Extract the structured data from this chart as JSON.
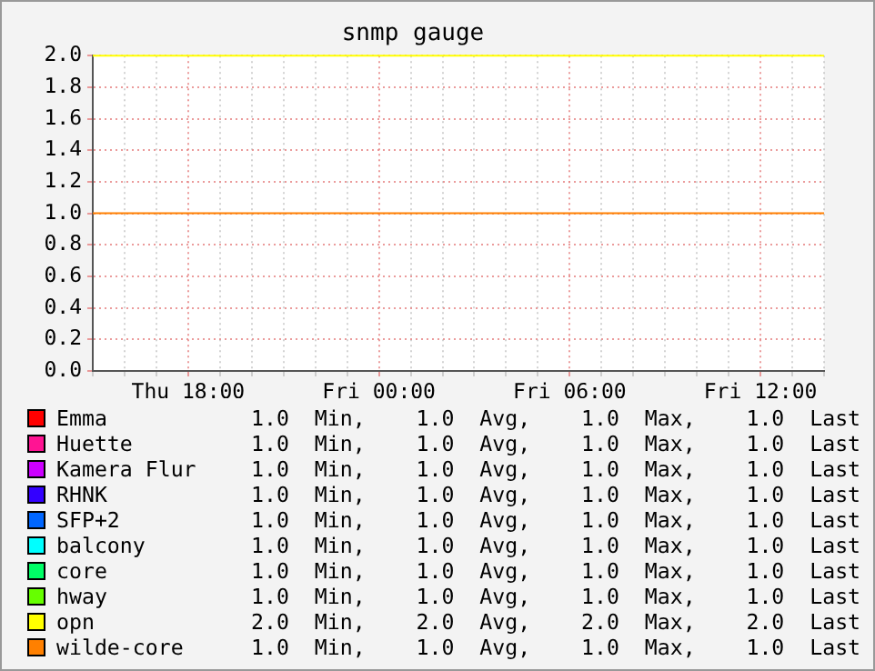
{
  "chart_data": {
    "type": "line",
    "title": "snmp gauge",
    "categories": [
      null,
      null,
      null,
      "Thu 18:00",
      null,
      null,
      null,
      null,
      null,
      "Fri 00:00",
      null,
      null,
      null,
      null,
      null,
      "Fri 06:00",
      null,
      null,
      null,
      null,
      null,
      "Fri 12:00",
      null,
      null
    ],
    "ylim": [
      0,
      2
    ],
    "yticks": [
      {
        "value": 0,
        "label": "0.0"
      },
      {
        "value": 0.2,
        "label": "0.2"
      },
      {
        "value": 0.4,
        "label": "0.4"
      },
      {
        "value": 0.6,
        "label": "0.6"
      },
      {
        "value": 0.8,
        "label": "0.8"
      },
      {
        "value": 1,
        "label": "1.0"
      },
      {
        "value": 1.2,
        "label": "1.2"
      },
      {
        "value": 1.4,
        "label": "1.4"
      },
      {
        "value": 1.6,
        "label": "1.6"
      },
      {
        "value": 1.8,
        "label": "1.8"
      },
      {
        "value": 2,
        "label": "2.0"
      }
    ],
    "grid": true,
    "legend": "bottom",
    "series": [
      {
        "name": "Emma",
        "color": "#ff0000",
        "values": [
          null,
          null,
          null,
          null,
          null,
          null,
          null,
          null,
          null,
          null,
          null,
          null,
          null,
          null,
          null,
          null,
          null,
          null,
          null,
          null,
          null,
          null,
          null,
          null
        ]
      },
      {
        "name": "Huette",
        "color": "#ff1493",
        "values": [
          null,
          null,
          null,
          null,
          null,
          null,
          null,
          null,
          null,
          null,
          null,
          null,
          null,
          null,
          null,
          null,
          null,
          null,
          null,
          null,
          null,
          null,
          null,
          null
        ]
      },
      {
        "name": "Kamera Flur",
        "color": "#cc00ff",
        "values": [
          null,
          null,
          null,
          null,
          null,
          null,
          null,
          null,
          null,
          null,
          null,
          null,
          null,
          null,
          null,
          null,
          null,
          null,
          null,
          null,
          null,
          null,
          null,
          null
        ]
      },
      {
        "name": "RHNK",
        "color": "#3300ff",
        "values": [
          null,
          null,
          null,
          null,
          null,
          null,
          null,
          null,
          null,
          null,
          null,
          null,
          null,
          null,
          null,
          null,
          null,
          null,
          null,
          null,
          null,
          null,
          null,
          null
        ]
      },
      {
        "name": "SFP+2",
        "color": "#0066ff",
        "values": [
          null,
          null,
          null,
          null,
          null,
          null,
          null,
          null,
          null,
          null,
          null,
          null,
          null,
          null,
          null,
          null,
          null,
          null,
          null,
          null,
          null,
          null,
          null,
          null
        ]
      },
      {
        "name": "balcony",
        "color": "#00ffff",
        "values": [
          null,
          null,
          null,
          null,
          null,
          null,
          null,
          null,
          null,
          null,
          null,
          null,
          null,
          null,
          null,
          null,
          null,
          null,
          null,
          null,
          null,
          null,
          null,
          null
        ]
      },
      {
        "name": "core",
        "color": "#00ff66",
        "values": [
          null,
          null,
          null,
          null,
          null,
          null,
          null,
          null,
          null,
          null,
          null,
          null,
          null,
          null,
          null,
          null,
          null,
          null,
          null,
          null,
          null,
          null,
          null,
          null
        ]
      },
      {
        "name": "hway",
        "color": "#66ff00",
        "values": [
          null,
          null,
          null,
          null,
          null,
          null,
          null,
          null,
          null,
          null,
          null,
          null,
          null,
          null,
          null,
          null,
          null,
          null,
          null,
          null,
          null,
          null,
          null,
          null
        ]
      },
      {
        "name": "opn",
        "color": "#ffff00",
        "values": [
          2,
          2,
          2,
          2,
          2,
          2,
          2,
          2,
          2,
          2,
          2,
          2,
          2,
          2,
          2,
          2,
          2,
          2,
          2,
          2,
          2,
          2,
          2,
          2
        ]
      },
      {
        "name": "wilde-core",
        "color": "#ff8000",
        "values": [
          1,
          1,
          1,
          1,
          1,
          1,
          1,
          1,
          1,
          1,
          1,
          1,
          1,
          1,
          1,
          1,
          1,
          1,
          1,
          1,
          1,
          1,
          1,
          1
        ]
      }
    ],
    "annotations": [
      "1.0  Min,    1.0  Avg,    1.0  Max,    1.0  Last",
      "1.0  Min,    1.0  Avg,    1.0  Max,    1.0  Last",
      "1.0  Min,    1.0  Avg,    1.0  Max,    1.0  Last",
      "1.0  Min,    1.0  Avg,    1.0  Max,    1.0  Last",
      "1.0  Min,    1.0  Avg,    1.0  Max,    1.0  Last",
      "1.0  Min,    1.0  Avg,    1.0  Max,    1.0  Last",
      "1.0  Min,    1.0  Avg,    1.0  Max,    1.0  Last",
      "1.0  Min,    1.0  Avg,    1.0  Max,    1.0  Last",
      "2.0  Min,    2.0  Avg,    2.0  Max,    2.0  Last",
      "1.0  Min,    1.0  Avg,    1.0  Max,    1.0  Last"
    ]
  }
}
